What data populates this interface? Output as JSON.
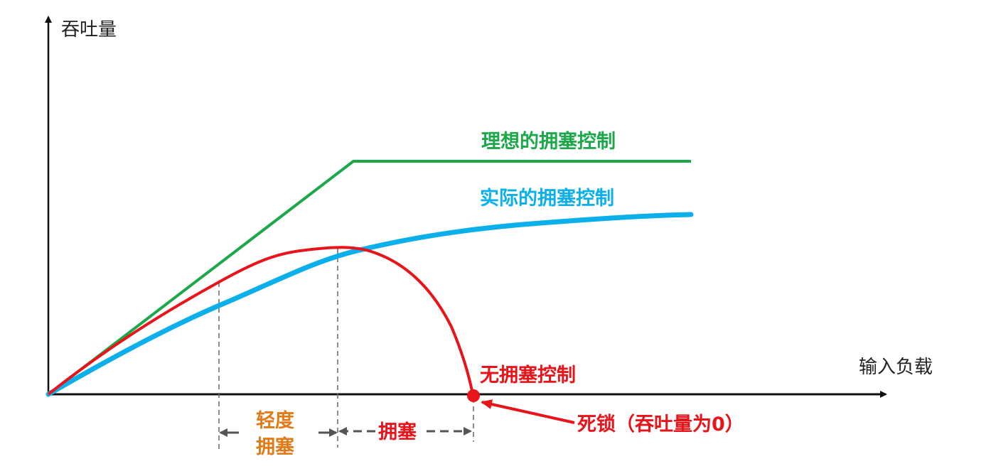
{
  "axes": {
    "y_label": "吞吐量",
    "x_label": "输入负载"
  },
  "curves": {
    "ideal": {
      "label": "理想的拥塞控制",
      "color": "#1ca84a"
    },
    "actual": {
      "label": "实际的拥塞控制",
      "color": "#0bb0ea"
    },
    "none": {
      "label": "无拥塞控制",
      "color": "#e8141a"
    }
  },
  "regions": {
    "light_line1": "轻度",
    "light_line2": "拥塞",
    "light_color": "#e07b18",
    "congestion": "拥塞",
    "congestion_color": "#e8141a"
  },
  "deadlock": {
    "label": "死锁（吞吐量为0）",
    "color": "#e8141a"
  }
}
